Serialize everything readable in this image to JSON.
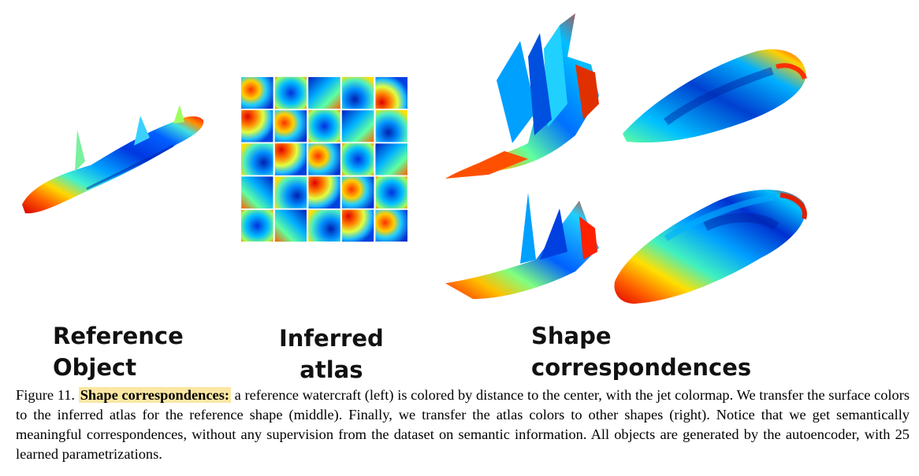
{
  "figure": {
    "panels": [
      {
        "id": "reference",
        "label": "Reference\nObject"
      },
      {
        "id": "atlas",
        "label": "Inferred\natlas"
      },
      {
        "id": "correspondences",
        "label": "Shape\ncorrespondences"
      }
    ],
    "atlas_grid": {
      "rows": 5,
      "cols": 5,
      "count": 25
    },
    "colormap": [
      "#0000b0",
      "#0050ff",
      "#00b4ff",
      "#20f0e0",
      "#90ff60",
      "#ffe000",
      "#ff8000",
      "#ff2000",
      "#c00000"
    ]
  },
  "caption": {
    "number": "Figure 11.",
    "highlight": "Shape correspondences:",
    "text": " a reference watercraft (left) is colored by distance to the center, with the jet colormap. We transfer the surface colors to the inferred atlas for the reference shape (middle). Finally, we transfer the atlas colors to other shapes (right). Notice that we get semantically meaningful correspondences, without any supervision from the dataset on semantic information. All objects are generated by the autoencoder, with 25 learned parametrizations."
  }
}
